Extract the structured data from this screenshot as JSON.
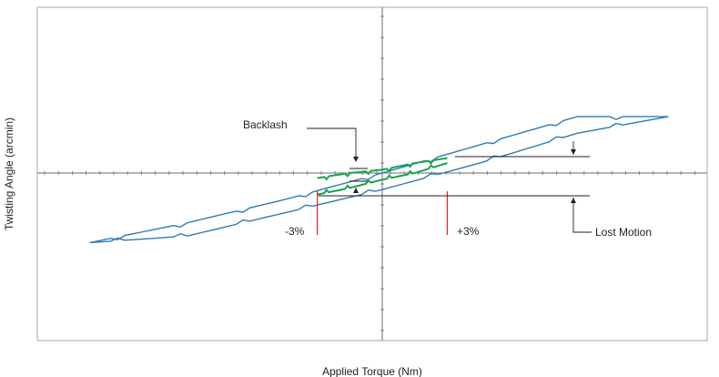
{
  "chart_data": {
    "type": "line",
    "xlabel": "Applied Torque (Nm)",
    "ylabel": "Twisting Angle (arcmin)",
    "xlim": [
      -100,
      100
    ],
    "ylim": [
      -100,
      100
    ],
    "grid": false,
    "colors": {
      "outer_loop": "#2e7bb6",
      "inner_loop": "#1aa34a",
      "marker": "#e0202a",
      "frame": "#a7a9ac",
      "axis": "#6d6e71",
      "annotation": "#231f20"
    },
    "series": [
      {
        "role": "outer-upper",
        "x": [
          -90,
          -60,
          -30,
          0,
          30,
          60,
          88
        ],
        "y": [
          -42,
          -30,
          -16,
          0,
          17,
          34,
          34
        ]
      },
      {
        "role": "outer-lower",
        "x": [
          -90,
          -60,
          -30,
          0,
          30,
          60,
          88
        ],
        "y": [
          -42,
          -38,
          -24,
          -10,
          6,
          24,
          34
        ]
      },
      {
        "role": "inner-upper",
        "x": [
          -20,
          -10,
          0,
          10,
          20
        ],
        "y": [
          -3,
          0,
          2,
          6,
          9
        ]
      },
      {
        "role": "inner-lower",
        "x": [
          -20,
          -10,
          0,
          10,
          20
        ],
        "y": [
          -13,
          -9,
          -4,
          0,
          6
        ]
      }
    ],
    "annotations": {
      "backlash": "Backlash",
      "lost_motion": "Lost Motion",
      "minus_marker": "-3%",
      "plus_marker": "+3%"
    },
    "markers_x": [
      -20,
      20
    ]
  }
}
